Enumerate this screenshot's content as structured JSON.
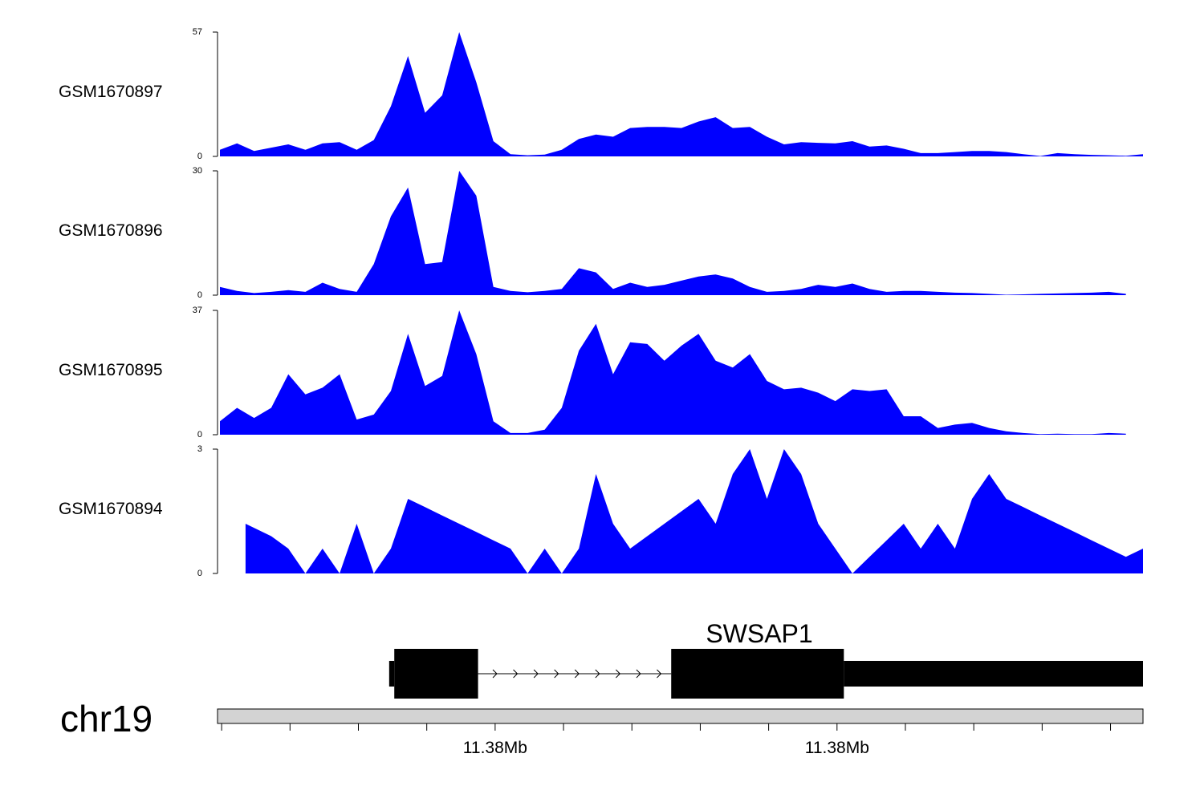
{
  "chart_data": {
    "type": "area",
    "tracks": [
      {
        "name": "GSM1670897",
        "ymax_label": "57",
        "ymin_label": "0",
        "ylim": [
          0,
          57
        ],
        "x": [
          1,
          2,
          3,
          4,
          5,
          6,
          7,
          8,
          9,
          10,
          11,
          12,
          13,
          14,
          15,
          16,
          17,
          18,
          19,
          20,
          21,
          22,
          23,
          24,
          25,
          26,
          27,
          28,
          29,
          30,
          31,
          32,
          33,
          34,
          35,
          36,
          37,
          38,
          39,
          40,
          41,
          42,
          43,
          44,
          45,
          46,
          47,
          48,
          49,
          50,
          51,
          52,
          53,
          54,
          55
        ],
        "values": [
          3,
          6,
          2.5,
          4,
          5.5,
          3,
          6,
          6.5,
          3,
          7.5,
          23,
          46,
          20,
          28,
          57,
          34,
          7,
          1,
          0.5,
          0.8,
          3,
          8,
          10,
          9,
          13,
          13.5,
          13.5,
          13,
          16,
          18,
          13,
          13.5,
          9,
          5.5,
          6.5,
          6.2,
          6,
          7,
          4.5,
          5,
          3.5,
          1.5,
          1.5,
          2,
          2.5,
          2.5,
          2,
          1,
          0.2,
          1.5,
          1,
          0.7,
          0.5,
          0.3,
          1
        ]
      },
      {
        "name": "GSM1670896",
        "ymax_label": "30",
        "ymin_label": "0",
        "ylim": [
          0,
          30
        ],
        "x": [
          1,
          2,
          3,
          4,
          5,
          6,
          7,
          8,
          9,
          10,
          11,
          12,
          13,
          14,
          15,
          16,
          17,
          18,
          19,
          20,
          21,
          22,
          23,
          24,
          25,
          26,
          27,
          28,
          29,
          30,
          31,
          32,
          33,
          34,
          35,
          36,
          37,
          38,
          39,
          40,
          41,
          42,
          43,
          44,
          45,
          46,
          47,
          48,
          49,
          50,
          51,
          52,
          53,
          54
        ],
        "values": [
          2,
          1,
          0.5,
          0.8,
          1.2,
          0.8,
          3,
          1.5,
          0.8,
          7.5,
          19,
          26,
          7.5,
          8,
          30,
          24,
          2,
          1,
          0.7,
          1,
          1.5,
          6.5,
          5.5,
          1.5,
          3,
          2,
          2.5,
          3.5,
          4.5,
          5,
          4,
          2,
          0.8,
          1,
          1.5,
          2.5,
          2,
          2.8,
          1.5,
          0.8,
          1,
          1,
          0.8,
          0.6,
          0.5,
          0.3,
          0.1,
          0.2,
          0.3,
          0.4,
          0.5,
          0.6,
          0.8,
          0.3
        ]
      },
      {
        "name": "GSM1670895",
        "ymax_label": "37",
        "ymin_label": "0",
        "ylim": [
          0,
          37
        ],
        "x": [
          1,
          2,
          3,
          4,
          5,
          6,
          7,
          8,
          9,
          10,
          11,
          12,
          13,
          14,
          15,
          16,
          17,
          18,
          19,
          20,
          21,
          22,
          23,
          24,
          25,
          26,
          27,
          28,
          29,
          30,
          31,
          32,
          33,
          34,
          35,
          36,
          37,
          38,
          39,
          40,
          41,
          42,
          43,
          44,
          45,
          46,
          47,
          48,
          49,
          50,
          51,
          52,
          53,
          54
        ],
        "values": [
          4,
          8,
          5,
          8,
          18,
          12,
          14,
          18,
          4.5,
          6,
          13,
          30,
          14.5,
          17.5,
          37,
          24,
          4,
          0.5,
          0.5,
          1.5,
          8,
          25,
          33,
          18,
          27.5,
          27,
          22,
          26.5,
          30,
          22,
          20,
          24,
          16,
          13.5,
          14,
          12.5,
          10,
          13.5,
          13,
          13.5,
          5.5,
          5.5,
          2,
          3,
          3.5,
          2,
          1,
          0.5,
          0.2,
          0.3,
          0.2,
          0.2,
          0.5,
          0.3
        ]
      },
      {
        "name": "GSM1670894",
        "ymax_label": "3",
        "ymin_label": "0",
        "ylim": [
          0,
          3
        ],
        "x": [
          2.5,
          4,
          5,
          6,
          7,
          8,
          9,
          10,
          11,
          12,
          13,
          14,
          15,
          16,
          17,
          18,
          19,
          20,
          21,
          22,
          23,
          24,
          25,
          26,
          27,
          28,
          29,
          30,
          31,
          32,
          33,
          34,
          35,
          36,
          37,
          38,
          39,
          40,
          41,
          42,
          43,
          44,
          45,
          46,
          47,
          48,
          49,
          50,
          51,
          52,
          53,
          54,
          55
        ],
        "values": [
          1.2,
          0.9,
          0.6,
          0,
          0.6,
          0,
          1.2,
          0,
          0.6,
          1.8,
          1.6,
          1.4,
          1.2,
          1,
          0.8,
          0.6,
          0,
          0.6,
          0,
          0.6,
          2.4,
          1.2,
          0.6,
          0.9,
          1.2,
          1.5,
          1.8,
          1.2,
          2.4,
          3,
          1.8,
          3,
          2.4,
          1.2,
          0.6,
          0,
          0.4,
          0.8,
          1.2,
          0.6,
          1.2,
          0.6,
          1.8,
          2.4,
          1.8,
          1.6,
          1.4,
          1.2,
          1,
          0.8,
          0.6,
          0.4,
          0.6
        ]
      }
    ],
    "gene": {
      "name": "SWSAP1",
      "strand": "+",
      "transcript_start": 10.9,
      "transcript_end": 55,
      "exons": [
        {
          "start": 10.9,
          "end": 11.2,
          "type": "utr"
        },
        {
          "start": 11.2,
          "end": 16.1,
          "type": "cds"
        },
        {
          "start": 27.4,
          "end": 37.5,
          "type": "cds"
        },
        {
          "start": 37.5,
          "end": 55,
          "type": "utr"
        }
      ],
      "intron_arrows": [
        17.2,
        18.4,
        19.6,
        20.8,
        22,
        23.2,
        24.4,
        25.6,
        26.8
      ]
    },
    "chromosome": "chr19",
    "x_range": [
      1,
      55
    ],
    "ticks": [
      1.1,
      5.1,
      9.1,
      13.1,
      17.1,
      21.1,
      25.1,
      29.1,
      33.1,
      37.1,
      41.1,
      45.1,
      49.1,
      53.1
    ],
    "tick_labels": [
      {
        "x": 17.1,
        "label": "11.38Mb"
      },
      {
        "x": 37.1,
        "label": "11.38Mb"
      }
    ],
    "fill_color": "#0000ff",
    "ideogram_color": "#d3d3d3"
  }
}
